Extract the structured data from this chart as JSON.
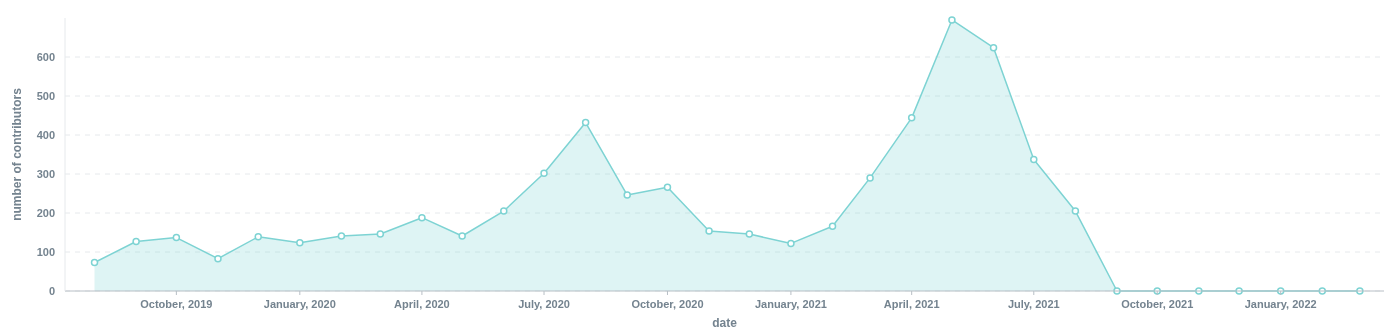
{
  "chart_data": {
    "type": "area",
    "xlabel": "date",
    "ylabel": "number of contributors",
    "x": [
      "2019-08",
      "2019-09",
      "2019-10",
      "2019-11",
      "2019-12",
      "2020-01",
      "2020-02",
      "2020-03",
      "2020-04",
      "2020-05",
      "2020-06",
      "2020-07",
      "2020-08",
      "2020-09",
      "2020-10",
      "2020-11",
      "2020-12",
      "2021-01",
      "2021-02",
      "2021-03",
      "2021-04",
      "2021-05",
      "2021-06",
      "2021-07",
      "2021-08",
      "2021-09",
      "2021-10",
      "2021-11",
      "2021-12",
      "2022-01",
      "2022-02",
      "2022-03"
    ],
    "series": [
      {
        "color": "#7dd3d3",
        "values": [
          73,
          127,
          137,
          83,
          139,
          124,
          141,
          146,
          188,
          141,
          205,
          302,
          432,
          246,
          266,
          154,
          146,
          122,
          166,
          290,
          444,
          695,
          624,
          337,
          205,
          0,
          0,
          0,
          0,
          0,
          0,
          0
        ]
      }
    ],
    "xlim": [
      "2019-07-10",
      "2022-03-19"
    ],
    "xticks": [
      {
        "value": "2019-10",
        "label": "October, 2019"
      },
      {
        "value": "2020-01",
        "label": "January, 2020"
      },
      {
        "value": "2020-04",
        "label": "April, 2020"
      },
      {
        "value": "2020-07",
        "label": "July, 2020"
      },
      {
        "value": "2020-10",
        "label": "October, 2020"
      },
      {
        "value": "2021-01",
        "label": "January, 2021"
      },
      {
        "value": "2021-04",
        "label": "April, 2021"
      },
      {
        "value": "2021-07",
        "label": "July, 2021"
      },
      {
        "value": "2021-10",
        "label": "October, 2021"
      },
      {
        "value": "2022-01",
        "label": "January, 2022"
      }
    ],
    "ylim": [
      0,
      700
    ],
    "yticks": [
      0,
      100,
      200,
      300,
      400,
      500,
      600
    ],
    "grid": "y",
    "marker": "circle",
    "line_style": "solid"
  }
}
